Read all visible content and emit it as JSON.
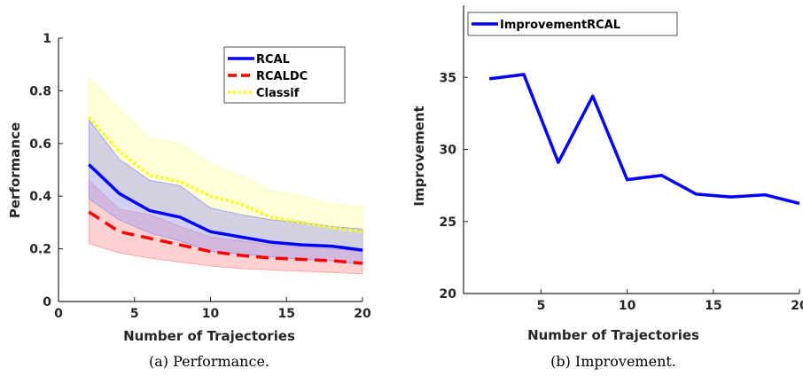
{
  "chart_data": [
    {
      "type": "line",
      "caption": "(a)  Performance.",
      "xlabel": "Number of Trajectories",
      "ylabel": "Performance",
      "xlim": [
        0,
        20
      ],
      "ylim": [
        0,
        1
      ],
      "xticks": [
        0,
        5,
        10,
        15,
        20
      ],
      "yticks": [
        0,
        0.2,
        0.4,
        0.6,
        0.8,
        1
      ],
      "ytick_labels": [
        "0",
        "0.2",
        "0.4",
        "0.6",
        "0.8",
        "1"
      ],
      "legend_position": "top-right",
      "x": [
        2,
        4,
        6,
        8,
        10,
        12,
        14,
        16,
        18,
        20
      ],
      "series": [
        {
          "name": "RCAL",
          "color": "#0000ff",
          "style": "solid",
          "values": [
            0.52,
            0.41,
            0.345,
            0.32,
            0.265,
            0.245,
            0.225,
            0.215,
            0.21,
            0.195
          ],
          "band_low": [
            0.39,
            0.31,
            0.26,
            0.23,
            0.19,
            0.18,
            0.17,
            0.16,
            0.155,
            0.14
          ],
          "band_high": [
            0.69,
            0.54,
            0.46,
            0.44,
            0.355,
            0.33,
            0.31,
            0.3,
            0.285,
            0.275
          ],
          "band_color": "#9999ee"
        },
        {
          "name": "RCALDC",
          "color": "#ff0000",
          "style": "dashed",
          "values": [
            0.34,
            0.265,
            0.24,
            0.215,
            0.19,
            0.175,
            0.165,
            0.16,
            0.155,
            0.145
          ],
          "band_low": [
            0.22,
            0.185,
            0.165,
            0.15,
            0.135,
            0.125,
            0.12,
            0.115,
            0.11,
            0.105
          ],
          "band_high": [
            0.46,
            0.35,
            0.33,
            0.285,
            0.245,
            0.23,
            0.215,
            0.205,
            0.2,
            0.19
          ],
          "band_color": "#ff9999"
        },
        {
          "name": "Classif",
          "color": "#ffff00",
          "style": "dotted",
          "values": [
            0.7,
            0.57,
            0.48,
            0.455,
            0.4,
            0.37,
            0.32,
            0.3,
            0.28,
            0.265
          ],
          "band_low": [
            0.53,
            0.42,
            0.35,
            0.33,
            0.29,
            0.27,
            0.24,
            0.22,
            0.21,
            0.2
          ],
          "band_high": [
            0.85,
            0.73,
            0.62,
            0.6,
            0.52,
            0.48,
            0.42,
            0.4,
            0.37,
            0.36
          ],
          "band_color": "#ffffaa"
        }
      ]
    },
    {
      "type": "line",
      "caption": "(b)  Improvement.",
      "xlabel": "Number of Trajectories",
      "ylabel": "Improvement",
      "xlim": [
        0.5,
        20
      ],
      "ylim": [
        20,
        40
      ],
      "xticks": [
        5,
        10,
        15,
        20
      ],
      "yticks": [
        20,
        25,
        30,
        35
      ],
      "ytick_labels": [
        "20",
        "25",
        "30",
        "35"
      ],
      "legend_position": "top-left",
      "x": [
        2,
        4,
        6,
        8,
        10,
        12,
        14,
        16,
        18,
        20
      ],
      "series": [
        {
          "name": "ImprovementRCAL",
          "color": "#0000ff",
          "style": "solid",
          "values": [
            34.9,
            35.2,
            29.1,
            33.7,
            27.9,
            28.2,
            26.9,
            26.7,
            26.85,
            26.25
          ]
        }
      ]
    }
  ]
}
